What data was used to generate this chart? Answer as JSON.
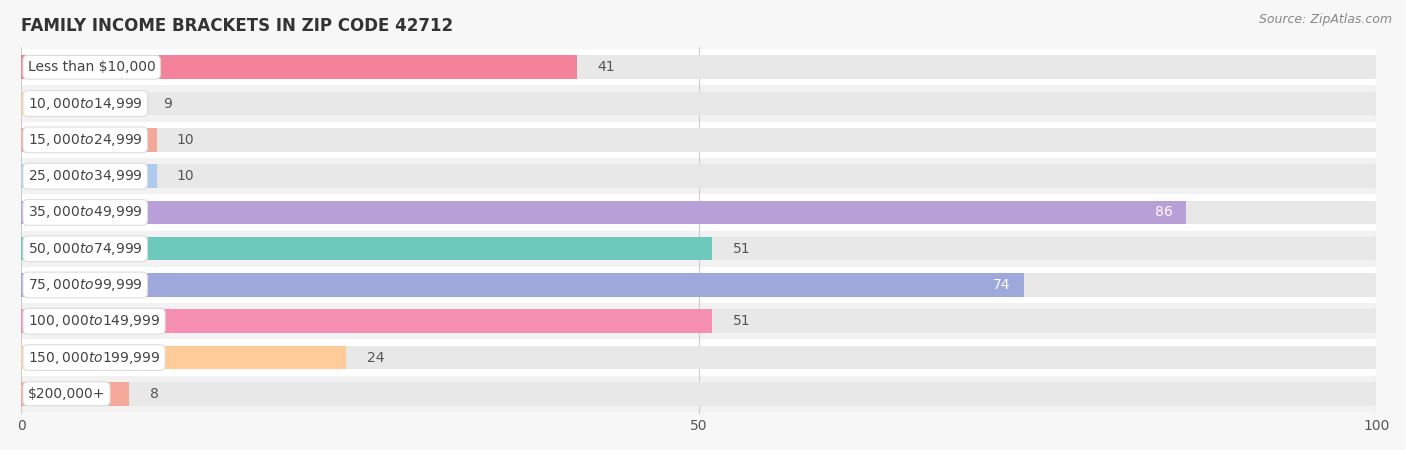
{
  "title": "FAMILY INCOME BRACKETS IN ZIP CODE 42712",
  "source": "Source: ZipAtlas.com",
  "categories": [
    "Less than $10,000",
    "$10,000 to $14,999",
    "$15,000 to $24,999",
    "$25,000 to $34,999",
    "$35,000 to $49,999",
    "$50,000 to $74,999",
    "$75,000 to $99,999",
    "$100,000 to $149,999",
    "$150,000 to $199,999",
    "$200,000+"
  ],
  "values": [
    41,
    9,
    10,
    10,
    86,
    51,
    74,
    51,
    24,
    8
  ],
  "bar_colors": [
    "#F2839A",
    "#F9C99A",
    "#F4A89A",
    "#AECBEE",
    "#B99FD8",
    "#6DC9BC",
    "#9FA8DA",
    "#F48FB1",
    "#FFCC99",
    "#F4A99A"
  ],
  "xlim": [
    0,
    100
  ],
  "xticks": [
    0,
    50,
    100
  ],
  "background_color": "#f7f7f7",
  "row_colors": [
    "#ffffff",
    "#f2f2f2"
  ],
  "bar_bg_color": "#e8e8e8",
  "label_inside_color": "#ffffff",
  "label_outside_color": "#555555",
  "label_inside_threshold": 65,
  "title_fontsize": 12,
  "source_fontsize": 9,
  "label_fontsize": 10,
  "tick_fontsize": 10,
  "cat_fontsize": 10
}
